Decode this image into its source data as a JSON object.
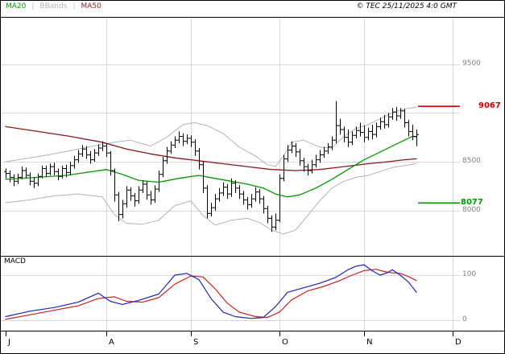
{
  "legend": {
    "ma20": "MA20",
    "separator": "|",
    "bbands": "BBands",
    "ma50": "MA50"
  },
  "header": {
    "copyright": "© TEC 25/11/2025 4:0 GMT"
  },
  "colors": {
    "background": "#ffffff",
    "border": "#000000",
    "grid": "#d9d9d9",
    "bars": "#000000",
    "ma20": "#009900",
    "ma50": "#8b1a1a",
    "bbands": "#b3b3b3",
    "axis_text": "#808080",
    "resistance": "#cc0000",
    "support": "#009900",
    "macd_line": "#2222bb",
    "macd_signal": "#cc2222"
  },
  "chart_data": {
    "type": "ohlc",
    "title": "",
    "x_axis": {
      "months": [
        {
          "label": "J",
          "i": 0,
          "grid": false
        },
        {
          "label": "A",
          "i": 25,
          "grid": true
        },
        {
          "label": "S",
          "i": 46,
          "grid": true
        },
        {
          "label": "O",
          "i": 68,
          "grid": true
        },
        {
          "label": "N",
          "i": 89,
          "grid": true
        },
        {
          "label": "D",
          "i": 111,
          "grid": true
        }
      ],
      "bar_count": 103
    },
    "price_panel": {
      "ylim": [
        7540,
        9980
      ],
      "grid_values": [
        9500,
        9000,
        8500,
        8000
      ],
      "y_ticks": [
        {
          "value": 9500,
          "label": "9500"
        },
        {
          "value": 8500,
          "label": "8500"
        },
        {
          "value": 8000,
          "label": "8000"
        }
      ],
      "levels": [
        {
          "label": "9067",
          "value": 9067,
          "type": "resistance",
          "color": "#cc0000"
        },
        {
          "label": "8077",
          "value": 8077,
          "type": "support",
          "color": "#009900"
        }
      ],
      "bars_ohlc": [
        [
          8400,
          8430,
          8330,
          8380
        ],
        [
          8380,
          8410,
          8290,
          8340
        ],
        [
          8340,
          8370,
          8250,
          8300
        ],
        [
          8300,
          8380,
          8270,
          8340
        ],
        [
          8340,
          8450,
          8320,
          8410
        ],
        [
          8410,
          8440,
          8330,
          8360
        ],
        [
          8360,
          8390,
          8260,
          8300
        ],
        [
          8300,
          8340,
          8230,
          8280
        ],
        [
          8280,
          8380,
          8250,
          8350
        ],
        [
          8350,
          8460,
          8330,
          8430
        ],
        [
          8430,
          8460,
          8340,
          8380
        ],
        [
          8380,
          8480,
          8360,
          8450
        ],
        [
          8450,
          8490,
          8360,
          8400
        ],
        [
          8400,
          8430,
          8310,
          8350
        ],
        [
          8350,
          8460,
          8330,
          8430
        ],
        [
          8430,
          8470,
          8340,
          8390
        ],
        [
          8390,
          8500,
          8360,
          8460
        ],
        [
          8460,
          8560,
          8430,
          8520
        ],
        [
          8520,
          8620,
          8490,
          8580
        ],
        [
          8580,
          8670,
          8550,
          8630
        ],
        [
          8630,
          8660,
          8530,
          8570
        ],
        [
          8570,
          8610,
          8480,
          8520
        ],
        [
          8520,
          8630,
          8500,
          8590
        ],
        [
          8590,
          8680,
          8560,
          8640
        ],
        [
          8640,
          8710,
          8610,
          8660
        ],
        [
          8660,
          8690,
          8550,
          8590
        ],
        [
          8590,
          8610,
          8360,
          8410
        ],
        [
          8410,
          8430,
          8090,
          8160
        ],
        [
          8160,
          8190,
          7890,
          7960
        ],
        [
          7960,
          8110,
          7920,
          8070
        ],
        [
          8070,
          8250,
          8030,
          8210
        ],
        [
          8210,
          8240,
          8100,
          8150
        ],
        [
          8150,
          8180,
          8040,
          8100
        ],
        [
          8100,
          8250,
          8070,
          8210
        ],
        [
          8210,
          8310,
          8180,
          8270
        ],
        [
          8270,
          8300,
          8110,
          8160
        ],
        [
          8160,
          8200,
          8060,
          8110
        ],
        [
          8110,
          8260,
          8080,
          8220
        ],
        [
          8220,
          8410,
          8190,
          8370
        ],
        [
          8370,
          8550,
          8340,
          8510
        ],
        [
          8510,
          8650,
          8480,
          8610
        ],
        [
          8610,
          8710,
          8580,
          8670
        ],
        [
          8670,
          8760,
          8640,
          8720
        ],
        [
          8720,
          8810,
          8690,
          8760
        ],
        [
          8760,
          8790,
          8660,
          8710
        ],
        [
          8710,
          8780,
          8680,
          8740
        ],
        [
          8740,
          8770,
          8650,
          8700
        ],
        [
          8700,
          8730,
          8560,
          8610
        ],
        [
          8610,
          8640,
          8420,
          8470
        ],
        [
          8470,
          8500,
          8180,
          8230
        ],
        [
          8230,
          8260,
          7920,
          7970
        ],
        [
          7970,
          8080,
          7940,
          8030
        ],
        [
          8030,
          8170,
          8000,
          8120
        ],
        [
          8120,
          8230,
          8090,
          8180
        ],
        [
          8180,
          8290,
          8150,
          8240
        ],
        [
          8240,
          8270,
          8120,
          8170
        ],
        [
          8170,
          8330,
          8140,
          8280
        ],
        [
          8280,
          8310,
          8180,
          8230
        ],
        [
          8230,
          8260,
          8120,
          8170
        ],
        [
          8170,
          8200,
          8060,
          8110
        ],
        [
          8110,
          8140,
          8010,
          8060
        ],
        [
          8060,
          8170,
          8030,
          8120
        ],
        [
          8120,
          8240,
          8090,
          8190
        ],
        [
          8190,
          8220,
          8070,
          8120
        ],
        [
          8120,
          8150,
          7970,
          8020
        ],
        [
          8020,
          8050,
          7870,
          7920
        ],
        [
          7920,
          7950,
          7780,
          7830
        ],
        [
          7830,
          7970,
          7800,
          7900
        ],
        [
          7900,
          8370,
          7880,
          8330
        ],
        [
          8330,
          8570,
          8300,
          8530
        ],
        [
          8530,
          8670,
          8500,
          8620
        ],
        [
          8620,
          8710,
          8590,
          8660
        ],
        [
          8660,
          8690,
          8550,
          8600
        ],
        [
          8600,
          8630,
          8460,
          8510
        ],
        [
          8510,
          8540,
          8400,
          8450
        ],
        [
          8450,
          8480,
          8360,
          8410
        ],
        [
          8410,
          8520,
          8380,
          8470
        ],
        [
          8470,
          8570,
          8440,
          8520
        ],
        [
          8520,
          8620,
          8490,
          8570
        ],
        [
          8570,
          8650,
          8540,
          8610
        ],
        [
          8610,
          8690,
          8580,
          8650
        ],
        [
          8650,
          8760,
          8620,
          8720
        ],
        [
          8720,
          9120,
          8690,
          8870
        ],
        [
          8870,
          8940,
          8780,
          8830
        ],
        [
          8830,
          8860,
          8700,
          8750
        ],
        [
          8750,
          8830,
          8650,
          8700
        ],
        [
          8700,
          8810,
          8670,
          8770
        ],
        [
          8770,
          8860,
          8740,
          8820
        ],
        [
          8820,
          8900,
          8760,
          8800
        ],
        [
          8800,
          8870,
          8700,
          8750
        ],
        [
          8750,
          8850,
          8720,
          8810
        ],
        [
          8810,
          8880,
          8730,
          8780
        ],
        [
          8780,
          8900,
          8750,
          8860
        ],
        [
          8860,
          8950,
          8830,
          8910
        ],
        [
          8910,
          8980,
          8840,
          8880
        ],
        [
          8880,
          9000,
          8850,
          8960
        ],
        [
          8960,
          9050,
          8930,
          9010
        ],
        [
          9010,
          9060,
          8920,
          8970
        ],
        [
          8970,
          9050,
          8940,
          9020
        ],
        [
          9020,
          9040,
          8850,
          8900
        ],
        [
          8900,
          8930,
          8760,
          8810
        ],
        [
          8810,
          8880,
          8720,
          8760
        ],
        [
          8760,
          8830,
          8660,
          8780
        ]
      ],
      "ma20": [
        [
          0,
          8320
        ],
        [
          8,
          8340
        ],
        [
          15,
          8360
        ],
        [
          20,
          8390
        ],
        [
          25,
          8420
        ],
        [
          29,
          8370
        ],
        [
          33,
          8310
        ],
        [
          38,
          8290
        ],
        [
          43,
          8330
        ],
        [
          48,
          8360
        ],
        [
          52,
          8330
        ],
        [
          56,
          8300
        ],
        [
          60,
          8270
        ],
        [
          64,
          8230
        ],
        [
          67,
          8170
        ],
        [
          70,
          8140
        ],
        [
          73,
          8160
        ],
        [
          77,
          8230
        ],
        [
          81,
          8320
        ],
        [
          85,
          8420
        ],
        [
          89,
          8520
        ],
        [
          93,
          8600
        ],
        [
          96,
          8660
        ],
        [
          99,
          8720
        ],
        [
          101,
          8760
        ],
        [
          102,
          8755
        ]
      ],
      "ma50": [
        [
          0,
          8860
        ],
        [
          8,
          8810
        ],
        [
          16,
          8760
        ],
        [
          24,
          8700
        ],
        [
          30,
          8630
        ],
        [
          36,
          8580
        ],
        [
          42,
          8540
        ],
        [
          48,
          8510
        ],
        [
          54,
          8480
        ],
        [
          60,
          8450
        ],
        [
          66,
          8420
        ],
        [
          72,
          8410
        ],
        [
          78,
          8420
        ],
        [
          84,
          8450
        ],
        [
          90,
          8480
        ],
        [
          95,
          8500
        ],
        [
          99,
          8520
        ],
        [
          102,
          8530
        ]
      ],
      "bb_upper": [
        [
          0,
          8500
        ],
        [
          6,
          8540
        ],
        [
          12,
          8580
        ],
        [
          18,
          8630
        ],
        [
          24,
          8680
        ],
        [
          27,
          8700
        ],
        [
          31,
          8720
        ],
        [
          36,
          8660
        ],
        [
          40,
          8750
        ],
        [
          44,
          8880
        ],
        [
          47,
          8900
        ],
        [
          50,
          8870
        ],
        [
          54,
          8790
        ],
        [
          58,
          8650
        ],
        [
          62,
          8560
        ],
        [
          65,
          8470
        ],
        [
          67,
          8450
        ],
        [
          69,
          8560
        ],
        [
          71,
          8700
        ],
        [
          74,
          8720
        ],
        [
          78,
          8650
        ],
        [
          81,
          8640
        ],
        [
          84,
          8760
        ],
        [
          87,
          8840
        ],
        [
          90,
          8880
        ],
        [
          93,
          8940
        ],
        [
          96,
          9000
        ],
        [
          99,
          9040
        ],
        [
          102,
          9060
        ]
      ],
      "bb_lower": [
        [
          0,
          8080
        ],
        [
          6,
          8110
        ],
        [
          12,
          8150
        ],
        [
          18,
          8170
        ],
        [
          24,
          8140
        ],
        [
          27,
          7960
        ],
        [
          30,
          7870
        ],
        [
          34,
          7860
        ],
        [
          38,
          7900
        ],
        [
          42,
          8050
        ],
        [
          46,
          8100
        ],
        [
          49,
          7950
        ],
        [
          52,
          7850
        ],
        [
          56,
          7900
        ],
        [
          60,
          7920
        ],
        [
          63,
          7880
        ],
        [
          66,
          7800
        ],
        [
          69,
          7760
        ],
        [
          72,
          7800
        ],
        [
          75,
          7950
        ],
        [
          78,
          8100
        ],
        [
          81,
          8230
        ],
        [
          84,
          8300
        ],
        [
          87,
          8340
        ],
        [
          90,
          8360
        ],
        [
          93,
          8400
        ],
        [
          96,
          8440
        ],
        [
          99,
          8460
        ],
        [
          102,
          8480
        ]
      ]
    },
    "macd_panel": {
      "label": "MACD",
      "ylim": [
        -23,
        141
      ],
      "grid_values": [
        100,
        0
      ],
      "y_ticks": [
        {
          "value": 100,
          "label": "100"
        },
        {
          "value": 0,
          "label": "0"
        }
      ],
      "macd": [
        [
          0,
          8
        ],
        [
          6,
          20
        ],
        [
          12,
          28
        ],
        [
          18,
          40
        ],
        [
          23,
          60
        ],
        [
          26,
          42
        ],
        [
          29,
          35
        ],
        [
          33,
          44
        ],
        [
          38,
          58
        ],
        [
          42,
          100
        ],
        [
          45,
          104
        ],
        [
          48,
          90
        ],
        [
          51,
          48
        ],
        [
          54,
          18
        ],
        [
          57,
          8
        ],
        [
          61,
          4
        ],
        [
          64,
          6
        ],
        [
          67,
          30
        ],
        [
          70,
          62
        ],
        [
          74,
          72
        ],
        [
          78,
          82
        ],
        [
          82,
          95
        ],
        [
          85,
          112
        ],
        [
          87,
          120
        ],
        [
          89,
          123
        ],
        [
          91,
          110
        ],
        [
          93,
          100
        ],
        [
          95,
          106
        ],
        [
          96,
          112
        ],
        [
          98,
          100
        ],
        [
          100,
          85
        ],
        [
          102,
          62
        ]
      ],
      "signal": [
        [
          0,
          2
        ],
        [
          6,
          12
        ],
        [
          12,
          22
        ],
        [
          18,
          32
        ],
        [
          23,
          48
        ],
        [
          27,
          52
        ],
        [
          30,
          42
        ],
        [
          34,
          40
        ],
        [
          38,
          50
        ],
        [
          42,
          80
        ],
        [
          46,
          98
        ],
        [
          49,
          96
        ],
        [
          52,
          70
        ],
        [
          55,
          38
        ],
        [
          58,
          18
        ],
        [
          62,
          8
        ],
        [
          65,
          6
        ],
        [
          68,
          18
        ],
        [
          71,
          45
        ],
        [
          75,
          65
        ],
        [
          79,
          75
        ],
        [
          83,
          88
        ],
        [
          86,
          100
        ],
        [
          89,
          110
        ],
        [
          92,
          113
        ],
        [
          94,
          108
        ],
        [
          96,
          105
        ],
        [
          98,
          104
        ],
        [
          100,
          97
        ],
        [
          102,
          88
        ]
      ]
    }
  }
}
